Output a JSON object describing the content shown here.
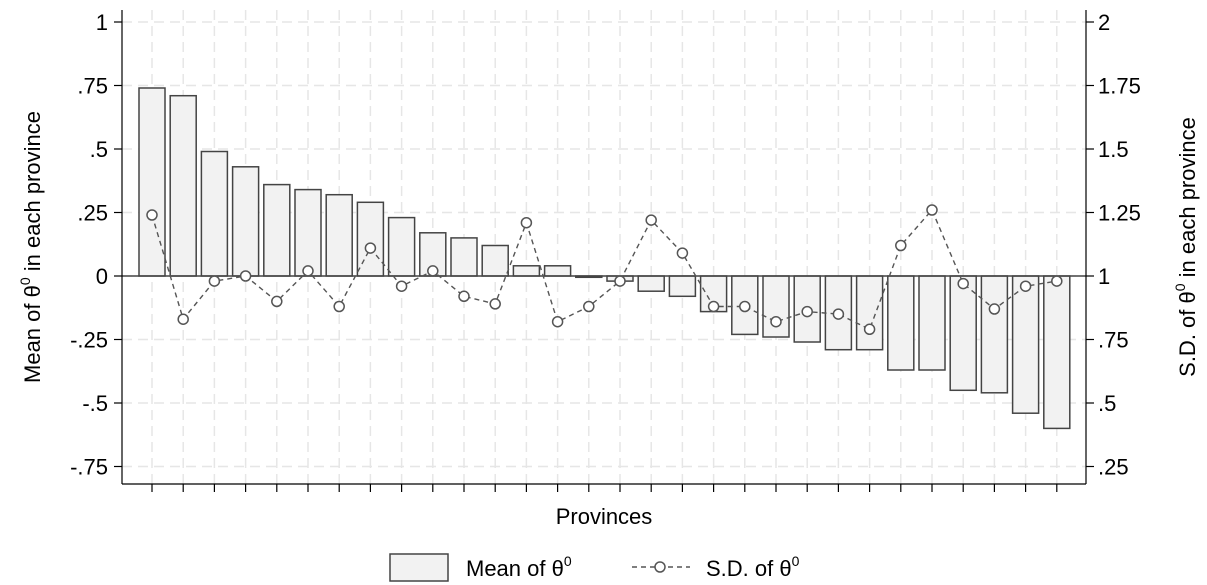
{
  "chart_data": {
    "type": "bar",
    "xlabel": "Provinces",
    "ylabel_left": "Mean of θ",
    "ylabel_left_sup": "0",
    "ylabel_left_suffix": " in each province",
    "ylabel_right": "S.D. of θ",
    "ylabel_right_sup": "0",
    "ylabel_right_suffix": " in each province",
    "left_ylim": [
      -0.8,
      1.05
    ],
    "right_ylim": [
      0.2,
      2.05
    ],
    "left_ticks": [
      {
        "v": 1,
        "label": "1"
      },
      {
        "v": 0.75,
        "label": ".75"
      },
      {
        "v": 0.5,
        "label": ".5"
      },
      {
        "v": 0.25,
        "label": ".25"
      },
      {
        "v": 0,
        "label": "0"
      },
      {
        "v": -0.25,
        "label": "-.25"
      },
      {
        "v": -0.5,
        "label": "-.5"
      },
      {
        "v": -0.75,
        "label": "-.75"
      }
    ],
    "right_ticks": [
      {
        "v": 2,
        "label": "2"
      },
      {
        "v": 1.75,
        "label": "1.75"
      },
      {
        "v": 1.5,
        "label": "1.5"
      },
      {
        "v": 1.25,
        "label": "1.25"
      },
      {
        "v": 1,
        "label": "1"
      },
      {
        "v": 0.75,
        "label": ".75"
      },
      {
        "v": 0.5,
        "label": ".5"
      },
      {
        "v": 0.25,
        "label": ".25"
      }
    ],
    "grid": true,
    "legend_position": "bottom",
    "series": [
      {
        "name": "Mean of θ",
        "name_sup": "0",
        "type": "bar",
        "axis": "left",
        "values": [
          0.74,
          0.71,
          0.49,
          0.43,
          0.36,
          0.34,
          0.32,
          0.29,
          0.23,
          0.17,
          0.15,
          0.12,
          0.04,
          0.04,
          -0.005,
          -0.02,
          -0.06,
          -0.08,
          -0.14,
          -0.23,
          -0.24,
          -0.26,
          -0.29,
          -0.29,
          -0.37,
          -0.37,
          -0.45,
          -0.46,
          -0.54,
          -0.6
        ]
      },
      {
        "name": "S.D. of θ",
        "name_sup": "0",
        "type": "line",
        "axis": "right",
        "values": [
          1.24,
          0.83,
          0.98,
          1.0,
          0.9,
          1.02,
          0.88,
          1.11,
          0.96,
          1.02,
          0.92,
          0.89,
          1.21,
          0.82,
          0.88,
          0.98,
          1.22,
          1.09,
          0.88,
          0.88,
          0.82,
          0.86,
          0.85,
          0.79,
          1.12,
          1.26,
          0.97,
          0.87,
          0.96,
          0.98
        ]
      }
    ]
  }
}
